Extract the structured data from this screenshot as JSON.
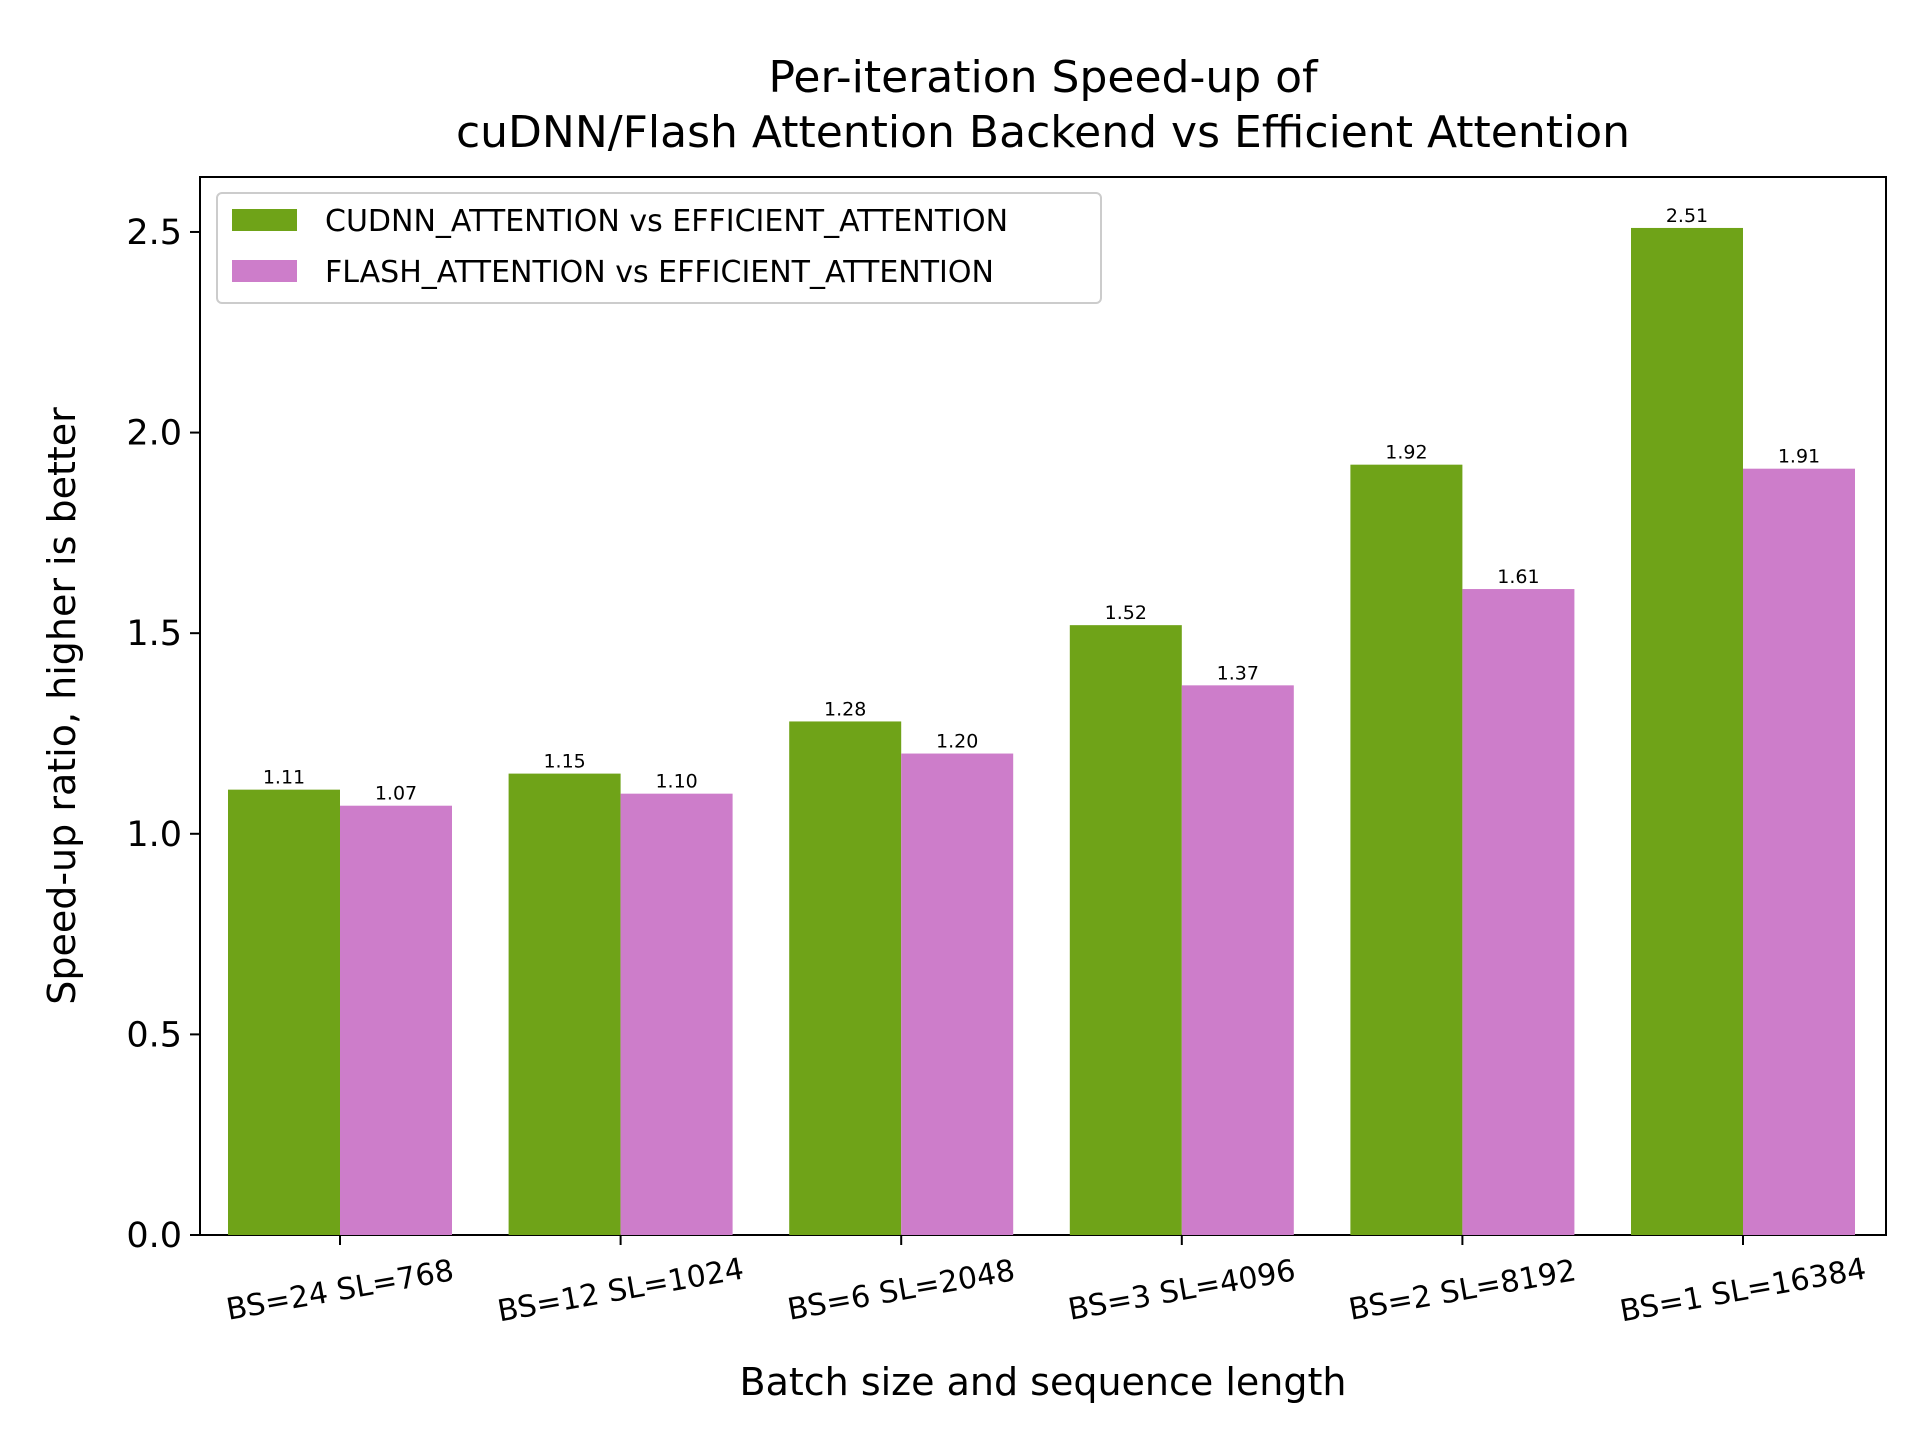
{
  "chart_data": {
    "type": "bar",
    "title": "Per-iteration Speed-up of\ncuDNN/Flash Attention Backend vs Efficient Attention",
    "xlabel": "Batch size and sequence length",
    "ylabel": "Speed-up ratio, higher is better",
    "categories": [
      "BS=24 SL=768",
      "BS=12 SL=1024",
      "BS=6 SL=2048",
      "BS=3 SL=4096",
      "BS=2 SL=8192",
      "BS=1 SL=16384"
    ],
    "series": [
      {
        "name": "CUDNN_ATTENTION vs EFFICIENT_ATTENTION",
        "values": [
          1.11,
          1.15,
          1.28,
          1.52,
          1.92,
          2.51
        ],
        "labels": [
          "1.11",
          "1.15",
          "1.28",
          "1.52",
          "1.92",
          "2.51"
        ],
        "color": "#6fa318"
      },
      {
        "name": "FLASH_ATTENTION vs EFFICIENT_ATTENTION",
        "values": [
          1.07,
          1.1,
          1.2,
          1.37,
          1.61,
          1.91
        ],
        "labels": [
          "1.07",
          "1.10",
          "1.20",
          "1.37",
          "1.61",
          "1.91"
        ],
        "color": "#cd7dca"
      }
    ],
    "yticks": [
      "0.0",
      "0.5",
      "1.0",
      "1.5",
      "2.0",
      "2.5"
    ],
    "ylim": [
      0,
      2.637
    ],
    "grid": false,
    "legend_position": "top-left"
  }
}
